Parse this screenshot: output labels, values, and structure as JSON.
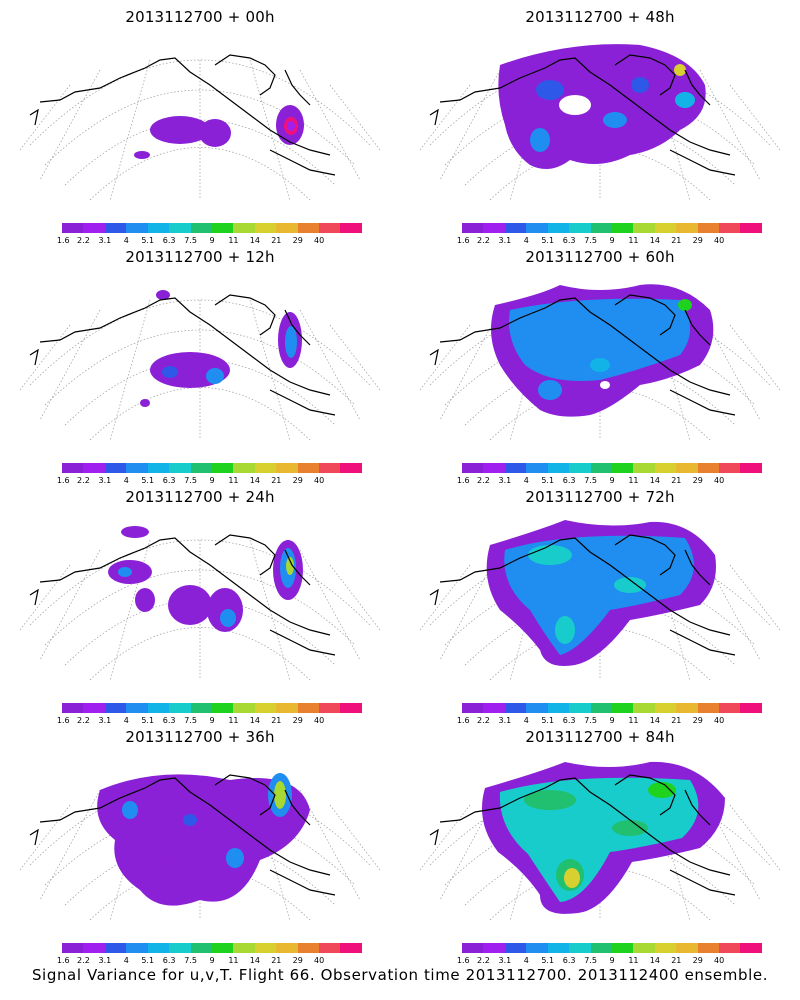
{
  "caption": "Signal Variance for u,v,T. Flight 66. Observation time 2013112700. 2013112400 ensemble.",
  "colorbar": {
    "labels": [
      "1.6",
      "2.2",
      "3.1",
      "4",
      "5.1",
      "6.3",
      "7.5",
      "9",
      "11",
      "14",
      "21",
      "29",
      "40"
    ],
    "colors": [
      "#8b21d6",
      "#a020f0",
      "#2e58e8",
      "#1f8ef0",
      "#12b4e8",
      "#18cccc",
      "#20c070",
      "#1ed21e",
      "#a8d832",
      "#d8d030",
      "#e8b830",
      "#e88030",
      "#f04858",
      "#f0107c"
    ]
  },
  "panels": [
    {
      "id": "p00",
      "title": "2013112700 + 00h"
    },
    {
      "id": "p12",
      "title": "2013112700 + 12h"
    },
    {
      "id": "p24",
      "title": "2013112700 + 24h"
    },
    {
      "id": "p36",
      "title": "2013112700 + 36h"
    },
    {
      "id": "p48",
      "title": "2013112700 + 48h"
    },
    {
      "id": "p60",
      "title": "2013112700 + 60h"
    },
    {
      "id": "p72",
      "title": "2013112700 + 72h"
    },
    {
      "id": "p84",
      "title": "2013112700 + 84h"
    }
  ]
}
